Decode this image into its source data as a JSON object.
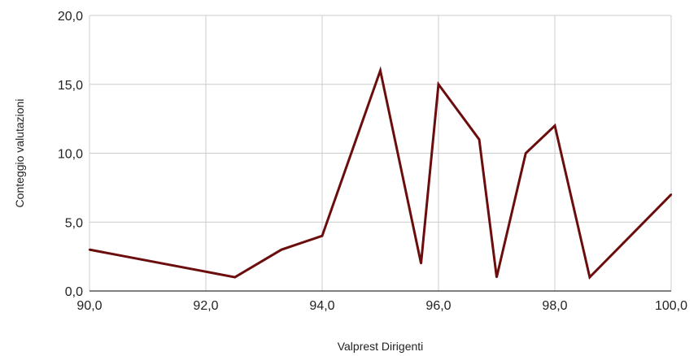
{
  "chart_data": {
    "type": "line",
    "xlabel": "Valprest Dirigenti",
    "ylabel": "Conteggio valutazioni",
    "xlim": [
      90,
      100
    ],
    "ylim": [
      0,
      20
    ],
    "x_ticks": [
      "90,0",
      "92,0",
      "94,0",
      "96,0",
      "98,0",
      "100,0"
    ],
    "y_ticks": [
      "0,0",
      "5,0",
      "10,0",
      "15,0",
      "20,0"
    ],
    "grid": true,
    "legend": "none",
    "series": [
      {
        "color": "#6b0d0d",
        "x": [
          90.0,
          92.5,
          93.3,
          94.0,
          95.0,
          95.7,
          96.0,
          96.7,
          97.0,
          97.5,
          98.0,
          98.6,
          100.0
        ],
        "y": [
          3,
          1,
          3,
          4,
          16,
          2,
          15,
          11,
          1,
          10,
          12,
          1,
          7
        ]
      }
    ]
  }
}
